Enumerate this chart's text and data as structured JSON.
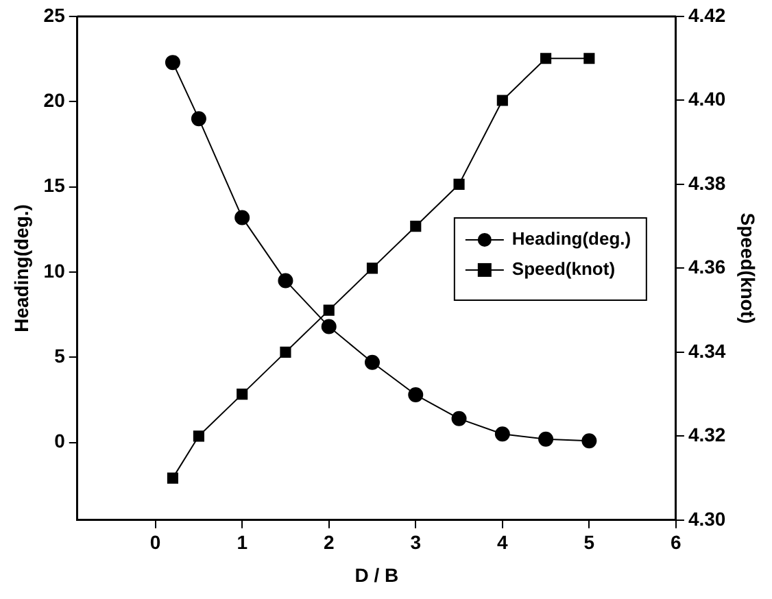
{
  "chart_data": {
    "type": "line",
    "xlabel": "D / B",
    "ylabel": "Heading(deg.)",
    "y2label": "Speed(knot)",
    "x": [
      0.2,
      0.5,
      1,
      1.5,
      2,
      2.5,
      3,
      3.5,
      4,
      4.5,
      5
    ],
    "series": [
      {
        "name": "Heading(deg.)",
        "color": "#000000",
        "marker": "circle",
        "values": [
          22.3,
          19.0,
          13.2,
          9.5,
          6.8,
          4.7,
          2.8,
          1.4,
          0.5,
          0.2,
          0.1
        ]
      },
      {
        "name": "Speed(knot)",
        "color": "#000000",
        "marker": "square",
        "axis": "y2",
        "values": [
          4.31,
          4.32,
          4.33,
          4.34,
          4.35,
          4.36,
          4.37,
          4.38,
          4.4,
          4.41,
          4.41
        ]
      }
    ],
    "xlim": [
      -0.9,
      6
    ],
    "xticks": [
      0,
      1,
      2,
      3,
      4,
      5,
      6
    ],
    "ylim": [
      -4.55,
      25
    ],
    "yticks": [
      0,
      5,
      10,
      15,
      20,
      25
    ],
    "y2lim": [
      4.3,
      4.42
    ],
    "y2ticks": [
      {
        "value": 4.3,
        "label": "4.30"
      },
      {
        "value": 4.32,
        "label": "4.32"
      },
      {
        "value": 4.34,
        "label": "4.34"
      },
      {
        "value": 4.36,
        "label": "4.36"
      },
      {
        "value": 4.38,
        "label": "4.38"
      },
      {
        "value": 4.4,
        "label": "4.40"
      },
      {
        "value": 4.42,
        "label": "4.42"
      }
    ],
    "grid": false,
    "legend": "right",
    "line_style": "solid"
  }
}
